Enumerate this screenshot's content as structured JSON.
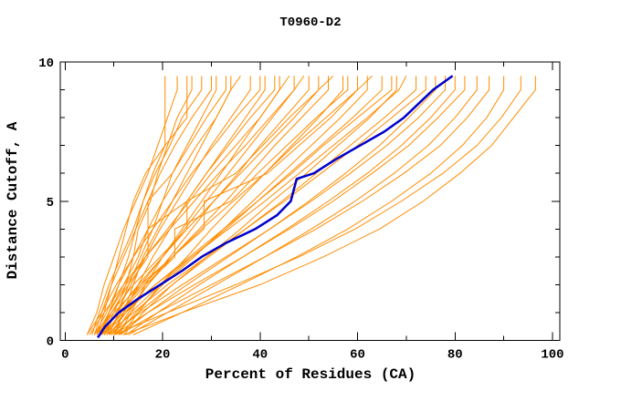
{
  "chart_data": {
    "type": "line",
    "title": "T0960-D2",
    "xlabel": "Percent of Residues (CA)",
    "ylabel": "Distance Cutoff, A",
    "xlim": [
      -1,
      101.5
    ],
    "ylim": [
      0,
      10
    ],
    "x_major_ticks": [
      0,
      20,
      40,
      60,
      80,
      100
    ],
    "x_minor_ticks": [
      10,
      30,
      50,
      70,
      90
    ],
    "y_major_ticks": [
      0,
      5,
      10
    ],
    "y_minor_ticks": [
      1,
      2,
      3,
      4,
      6,
      7,
      8,
      9
    ],
    "grid": false,
    "legend": "none",
    "colors": {
      "background": "#ffffff",
      "axis": "#000000",
      "model": "#ff8c00",
      "highlight": "#0000cc"
    },
    "highlight_series": {
      "name": "highlighted-model",
      "color": "#0000cc",
      "points": [
        [
          6.7,
          0.1
        ],
        [
          8.2,
          0.5
        ],
        [
          11,
          1
        ],
        [
          15,
          1.5
        ],
        [
          19.5,
          2
        ],
        [
          24,
          2.5
        ],
        [
          28,
          3
        ],
        [
          33,
          3.5
        ],
        [
          39,
          4
        ],
        [
          43.5,
          4.5
        ],
        [
          46.3,
          5
        ],
        [
          47.5,
          5.8
        ],
        [
          51,
          6
        ],
        [
          55.5,
          6.5
        ],
        [
          60.5,
          7
        ],
        [
          65.5,
          7.5
        ],
        [
          69.5,
          8
        ],
        [
          72.5,
          8.5
        ],
        [
          75.5,
          9
        ],
        [
          79.5,
          9.5
        ]
      ]
    },
    "model_series": {
      "name": "server-models",
      "color": "#ff8c00",
      "y_levels": [
        0.2,
        1,
        2,
        3,
        4,
        5,
        6,
        7,
        8,
        9,
        9.5
      ],
      "curves_x": [
        [
          6.5,
          8,
          9.5,
          11,
          12.5,
          14,
          16.5,
          20.5,
          20.5,
          20.5,
          20.5
        ],
        [
          4.5,
          6.5,
          8,
          10,
          12,
          14.5,
          17,
          19,
          21,
          23,
          23
        ],
        [
          7.5,
          9,
          11,
          13,
          14.5,
          16,
          18,
          20.5,
          25,
          25,
          25
        ],
        [
          8,
          10,
          12.5,
          14,
          15,
          17.5,
          19,
          21,
          23,
          26,
          26
        ],
        [
          5.5,
          7,
          9,
          11.5,
          14,
          16,
          18.5,
          21.5,
          24,
          28,
          28
        ],
        [
          6,
          7.5,
          9.5,
          12,
          14.5,
          17,
          19.5,
          22.5,
          26,
          30,
          30
        ],
        [
          9,
          11,
          13,
          15.5,
          18,
          20,
          22,
          25,
          28,
          31,
          31
        ],
        [
          7,
          9,
          12,
          15,
          17,
          17,
          22,
          25.5,
          29,
          33,
          33
        ],
        [
          10,
          12,
          14,
          16,
          19,
          22,
          25,
          28,
          31,
          34,
          34
        ],
        [
          6,
          8.5,
          11,
          14,
          17,
          20,
          23.5,
          27,
          31,
          34,
          36
        ],
        [
          8,
          10.5,
          13.5,
          16.5,
          19.5,
          23,
          26.5,
          30,
          34,
          38,
          38
        ],
        [
          4.5,
          7.5,
          10.5,
          14,
          18,
          22,
          26,
          30.5,
          35,
          40,
          40
        ],
        [
          9.5,
          12,
          15,
          18,
          21.5,
          25,
          29,
          33,
          37,
          41,
          41
        ],
        [
          7,
          9.5,
          13,
          17,
          17,
          25,
          29,
          33.5,
          38,
          43,
          43
        ],
        [
          11,
          13.5,
          16.5,
          20,
          24,
          28,
          32,
          36,
          40,
          44,
          44
        ],
        [
          6.5,
          9,
          12.5,
          16.5,
          21,
          25.5,
          30,
          35,
          40,
          44,
          46
        ],
        [
          8.5,
          11.5,
          15.5,
          20,
          24.5,
          29,
          33.5,
          38,
          42.5,
          47,
          47
        ],
        [
          5,
          8,
          12,
          16.5,
          21.5,
          26.5,
          31.5,
          37,
          42,
          47,
          49
        ],
        [
          10,
          13,
          17,
          21.5,
          26,
          30.5,
          35.5,
          40,
          45,
          50,
          50
        ],
        [
          7.5,
          10.5,
          15,
          20,
          25,
          25,
          35,
          40.5,
          46,
          52,
          52
        ],
        [
          9,
          12.5,
          17,
          22,
          27.5,
          33,
          38,
          43,
          48.5,
          54,
          54
        ],
        [
          6,
          9.5,
          14,
          19.5,
          25,
          30.5,
          36,
          41.5,
          47,
          52,
          55
        ],
        [
          11.5,
          15,
          19.5,
          25,
          30,
          35.5,
          41,
          46.5,
          52,
          57,
          57
        ],
        [
          8,
          11.5,
          16.5,
          22.5,
          22.5,
          34,
          39.5,
          45.5,
          51.5,
          58,
          58
        ],
        [
          7,
          11,
          16,
          22,
          28,
          34.5,
          41,
          47,
          53.5,
          60,
          60
        ],
        [
          10.5,
          14.5,
          20,
          26.5,
          32.5,
          38.5,
          44.5,
          50.5,
          56.5,
          62,
          62
        ],
        [
          6.5,
          10,
          15.5,
          22,
          28.5,
          28.5,
          41.5,
          48,
          54.5,
          60,
          63
        ],
        [
          9.5,
          13.5,
          19.5,
          26,
          33,
          39.5,
          46,
          52.5,
          59,
          65,
          65
        ],
        [
          8,
          12.5,
          18.5,
          25.5,
          32.5,
          39.5,
          46.5,
          53,
          60,
          67,
          67
        ],
        [
          12,
          16,
          22,
          29,
          36,
          42.5,
          49.5,
          56,
          62.5,
          68,
          68
        ],
        [
          7.5,
          12,
          18.5,
          26,
          33.5,
          41,
          48,
          55,
          62,
          68.5,
          70
        ],
        [
          10,
          15,
          22,
          29.5,
          37,
          44.5,
          51.5,
          58.5,
          65.5,
          72,
          72
        ],
        [
          8.5,
          14,
          21,
          29,
          37,
          45,
          52.5,
          60,
          67,
          74,
          74
        ],
        [
          11,
          17,
          25,
          33.5,
          42,
          50,
          57.5,
          64.5,
          70.5,
          76,
          76
        ],
        [
          9,
          15.5,
          24,
          33,
          42,
          50.5,
          58.5,
          66,
          72.5,
          78,
          78
        ],
        [
          12.5,
          19,
          27.5,
          36.5,
          45.5,
          54,
          62,
          69,
          75,
          80,
          80
        ],
        [
          10,
          17,
          26.5,
          36.5,
          46,
          55,
          63,
          70.5,
          76.5,
          82,
          82
        ],
        [
          13,
          21,
          31,
          41,
          50.5,
          59.5,
          67.5,
          74.5,
          80,
          84.5,
          84.5
        ],
        [
          11,
          19,
          30,
          41,
          51.5,
          61,
          69.5,
          77,
          82.5,
          87,
          87
        ],
        [
          14,
          24,
          36,
          47.5,
          58,
          67,
          75,
          81.5,
          86.5,
          90,
          90
        ],
        [
          10,
          21,
          35,
          48,
          59.5,
          69,
          77.5,
          84.5,
          89.5,
          93.5,
          93.5
        ],
        [
          12,
          24,
          40,
          53,
          64.5,
          73.5,
          81,
          87.5,
          92,
          96.5,
          96.5
        ]
      ]
    }
  }
}
